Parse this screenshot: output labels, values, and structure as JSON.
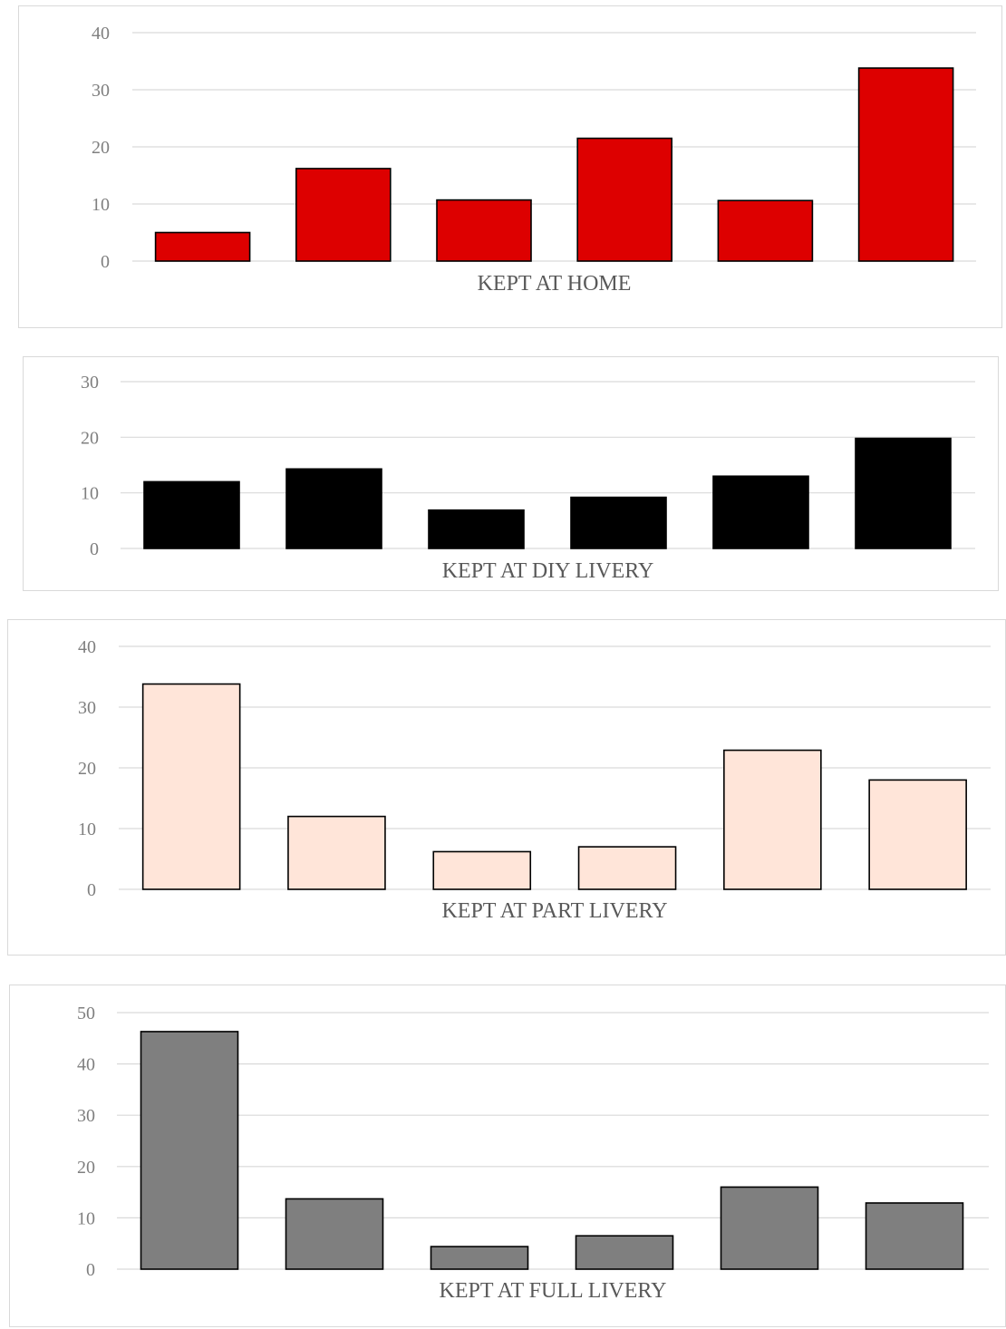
{
  "chart_data": [
    {
      "type": "bar",
      "title": "KEPT AT HOME",
      "categories": [
        "",
        "",
        "",
        "",
        "",
        ""
      ],
      "values": [
        5,
        16.2,
        10.7,
        21.5,
        10.6,
        33.8
      ],
      "ylim": [
        0,
        40
      ],
      "yticks": [
        "0",
        "10",
        "20",
        "30",
        "40"
      ],
      "grid": true,
      "bar_color": "#dd0000",
      "bar_outline": "#000000"
    },
    {
      "type": "bar",
      "title": "KEPT AT DIY LIVERY",
      "categories": [
        "",
        "",
        "",
        "",
        "",
        ""
      ],
      "values": [
        12,
        14.3,
        6.9,
        9.2,
        13,
        19.8
      ],
      "ylim": [
        0,
        30
      ],
      "yticks": [
        "0",
        "10",
        "20",
        "30"
      ],
      "grid": true,
      "bar_color": "#000000",
      "bar_outline": "#000000"
    },
    {
      "type": "bar",
      "title": "KEPT AT PART LIVERY",
      "categories": [
        "",
        "",
        "",
        "",
        "",
        ""
      ],
      "values": [
        33.8,
        12,
        6.2,
        7,
        22.9,
        18
      ],
      "ylim": [
        0,
        40
      ],
      "yticks": [
        "0",
        "10",
        "20",
        "30",
        "40"
      ],
      "grid": true,
      "bar_color": "#ffe5d9",
      "bar_outline": "#000000"
    },
    {
      "type": "bar",
      "title": "KEPT AT FULL LIVERY",
      "categories": [
        "",
        "",
        "",
        "",
        "",
        ""
      ],
      "values": [
        46.3,
        13.7,
        4.4,
        6.5,
        16,
        12.9
      ],
      "ylim": [
        0,
        50
      ],
      "yticks": [
        "0",
        "10",
        "20",
        "30",
        "40",
        "50"
      ],
      "grid": true,
      "bar_color": "#7f7f7f",
      "bar_outline": "#000000"
    }
  ]
}
